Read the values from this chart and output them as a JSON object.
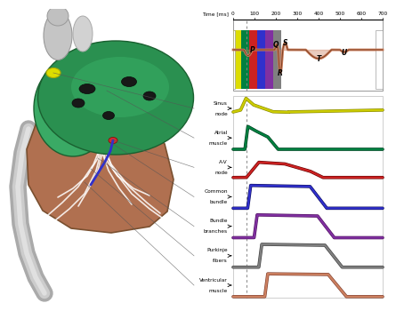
{
  "bg_color": "#ffffff",
  "trace_colors": [
    "#cccc00",
    "#008040",
    "#cc2222",
    "#3030cc",
    "#8030a0",
    "#808080",
    "#cc8060"
  ],
  "trace_outlines": [
    "#888800",
    "#004020",
    "#660000",
    "#101060",
    "#501060",
    "#404040",
    "#804030"
  ],
  "labels": [
    "Sinus\nnode",
    "Atrial\nmuscle",
    "A-V\nnode",
    "Common\nbundle",
    "Bundle\nbranches",
    "Purkinje\nfibers",
    "Ventricular\nmuscle"
  ],
  "time_ticks": [
    0,
    100,
    200,
    300,
    400,
    500,
    600,
    700
  ],
  "time_label": "Time [ms]",
  "strip_colors": [
    "#dddd00",
    "#008040",
    "#cc2222",
    "#3030cc",
    "#8030a0",
    "#808080"
  ],
  "ecg_fill": "#cc8060",
  "ecg_line": "#804020",
  "heart_green": "#2a9050",
  "heart_green2": "#3aaa65",
  "heart_brown": "#b07050",
  "heart_vessel": "#c8c8c8",
  "sinus_yellow": "#dddd00",
  "av_red": "#cc3030",
  "bundle_blue": "#3030cc"
}
